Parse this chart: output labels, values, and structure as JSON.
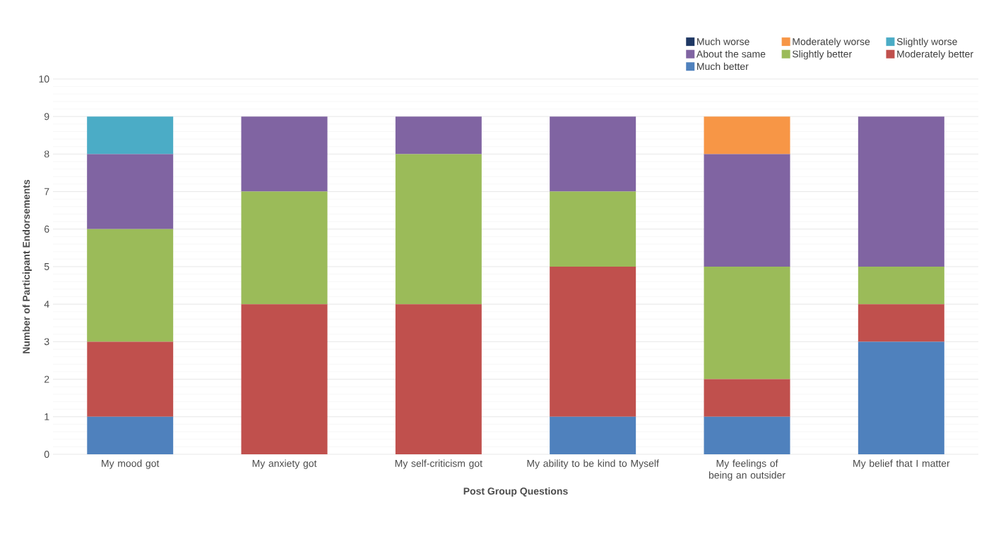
{
  "chart_data": {
    "type": "bar",
    "stacked": true,
    "xlabel": "Post Group Questions",
    "ylabel": "Number of Participant Endorsements",
    "categories": [
      "My mood got",
      "My anxiety got",
      "My self-criticism got",
      "My ability to be kind to Myself",
      "My feelings of being an outsider",
      "My belief that I matter"
    ],
    "series": [
      {
        "name": "Much better",
        "color": "#4f81bd",
        "values": [
          1,
          0,
          0,
          1,
          1,
          3
        ]
      },
      {
        "name": "Moderately better",
        "color": "#c0504d",
        "values": [
          2,
          4,
          4,
          4,
          1,
          1
        ]
      },
      {
        "name": "Slightly better",
        "color": "#9bbb59",
        "values": [
          3,
          3,
          4,
          2,
          3,
          1
        ]
      },
      {
        "name": "About the same",
        "color": "#8064a2",
        "values": [
          2,
          2,
          1,
          2,
          3,
          4
        ]
      },
      {
        "name": "Slightly worse",
        "color": "#4bacc6",
        "values": [
          1,
          0,
          0,
          0,
          0,
          0
        ]
      },
      {
        "name": "Moderately worse",
        "color": "#f79646",
        "values": [
          0,
          0,
          0,
          0,
          1,
          0
        ]
      },
      {
        "name": "Much worse",
        "color": "#1f3864",
        "values": [
          0,
          0,
          0,
          0,
          0,
          0
        ]
      }
    ],
    "ylim": [
      0,
      10
    ],
    "yticks": [
      0,
      1,
      2,
      3,
      4,
      5,
      6,
      7,
      8,
      9,
      10
    ],
    "grid": "y",
    "legend": "top right"
  }
}
